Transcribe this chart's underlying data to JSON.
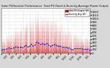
{
  "title": "Solar PV/Inverter Performance  Total PV Panel & Running Average Power Output",
  "y_max": 1300,
  "y_min": 0,
  "fill_color": "#cc0000",
  "line_color": "#0000ff",
  "bg_color": "#d8d8d8",
  "plot_bg": "#ffffff",
  "legend_pv_label": "Total PV Output (W)",
  "legend_avg_label": "Running Avg (W)",
  "legend_pv_color": "#cc0000",
  "legend_avg_color": "#0000ff",
  "yticks": [
    0,
    100,
    200,
    300,
    400,
    500,
    600,
    700,
    800,
    900,
    1000,
    1100,
    1200
  ],
  "num_days": 365,
  "samples_per_day": 12,
  "seed": 99
}
